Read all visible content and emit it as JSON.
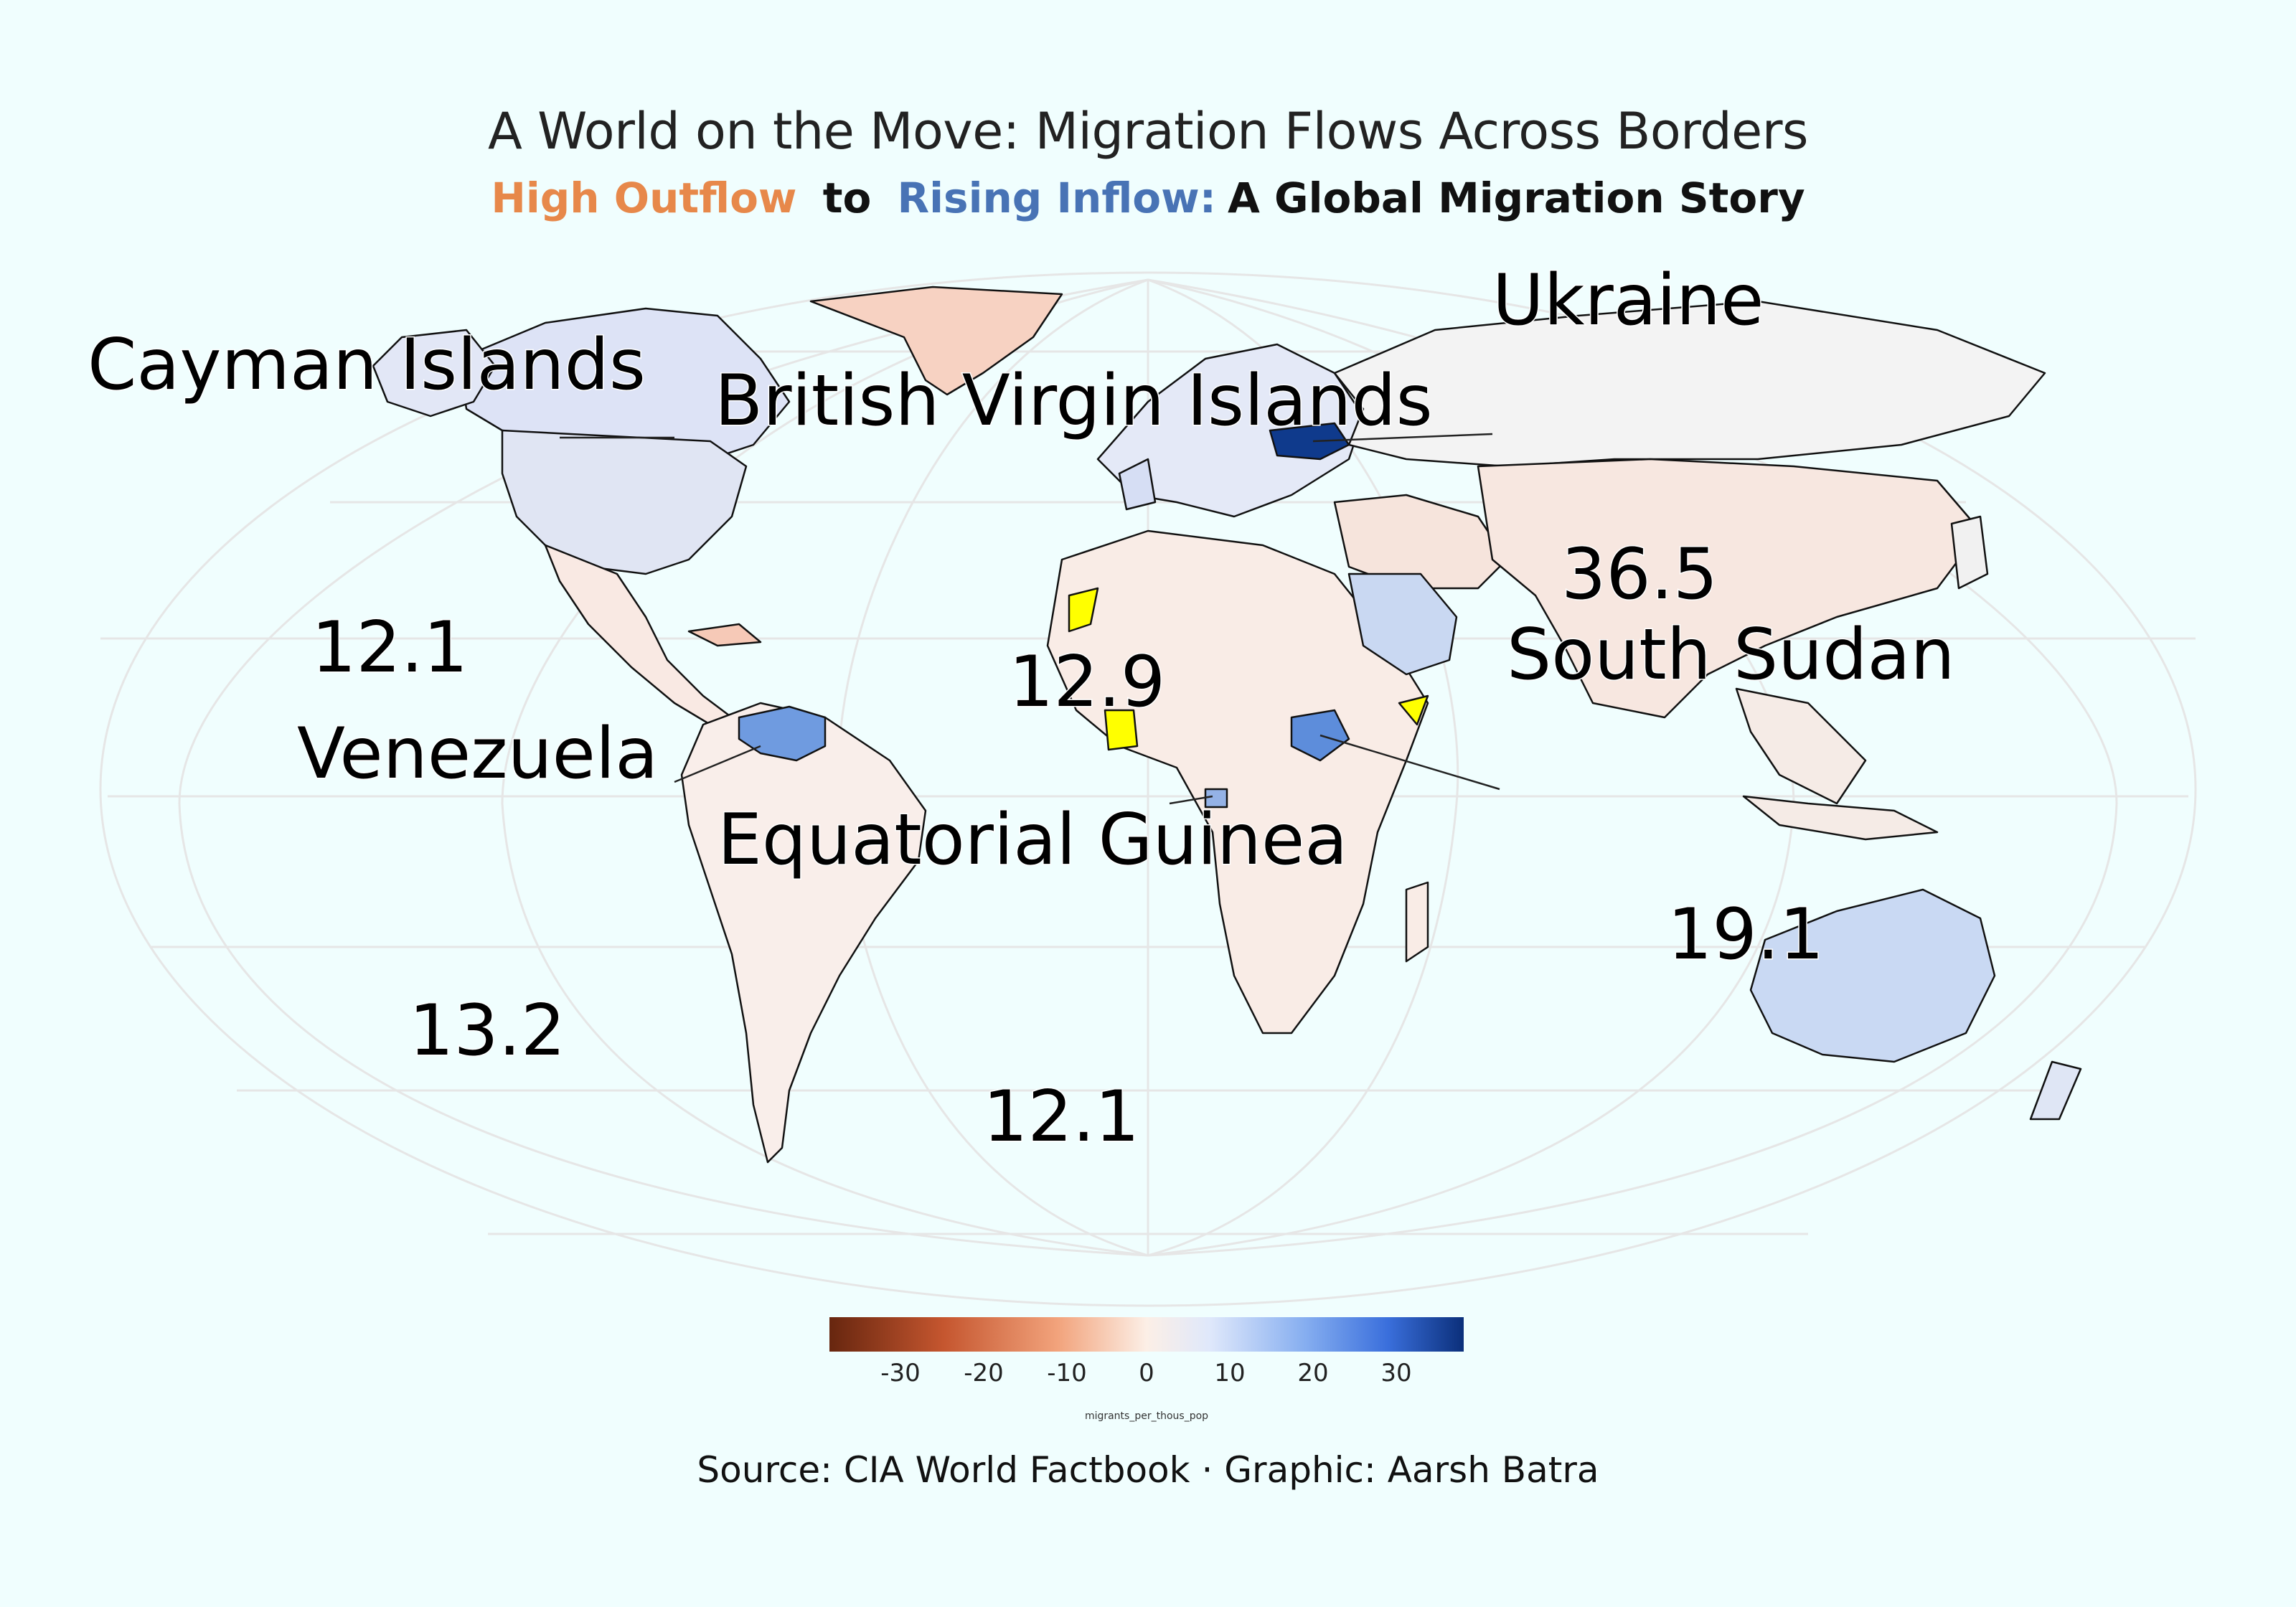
{
  "title": "A World on the Move: Migration Flows Across Borders",
  "subtitle": {
    "part1": "High Outflow",
    "part1_color": "#e7884a",
    "connector1": "to",
    "part2": "Rising Inflow:",
    "part2_color": "#4873b5",
    "part3": "A Global Migration Story"
  },
  "labels": {
    "ukraine": "Ukraine",
    "cayman": "Cayman Islands",
    "bvi": "British Virgin Islands",
    "v365": "36.5",
    "south_sudan": "South Sudan",
    "v121a": "12.1",
    "v129": "12.9",
    "venezuela": "Venezuela",
    "eq_guinea": "Equatorial Guinea",
    "v191": "19.1",
    "v132": "13.2",
    "v121b": "12.1"
  },
  "legend": {
    "ticks": [
      "-30",
      "-20",
      "-10",
      "0",
      "10",
      "20",
      "30"
    ],
    "title": "migrants_per_thous_pop",
    "range": [
      -38,
      38
    ]
  },
  "source": "Source: CIA World Factbook · Graphic: Aarsh Batra",
  "colors": {
    "background": "#f0fefe",
    "outflow": "#e7884a",
    "inflow": "#4873b5",
    "highlight": "#ffff00"
  }
}
